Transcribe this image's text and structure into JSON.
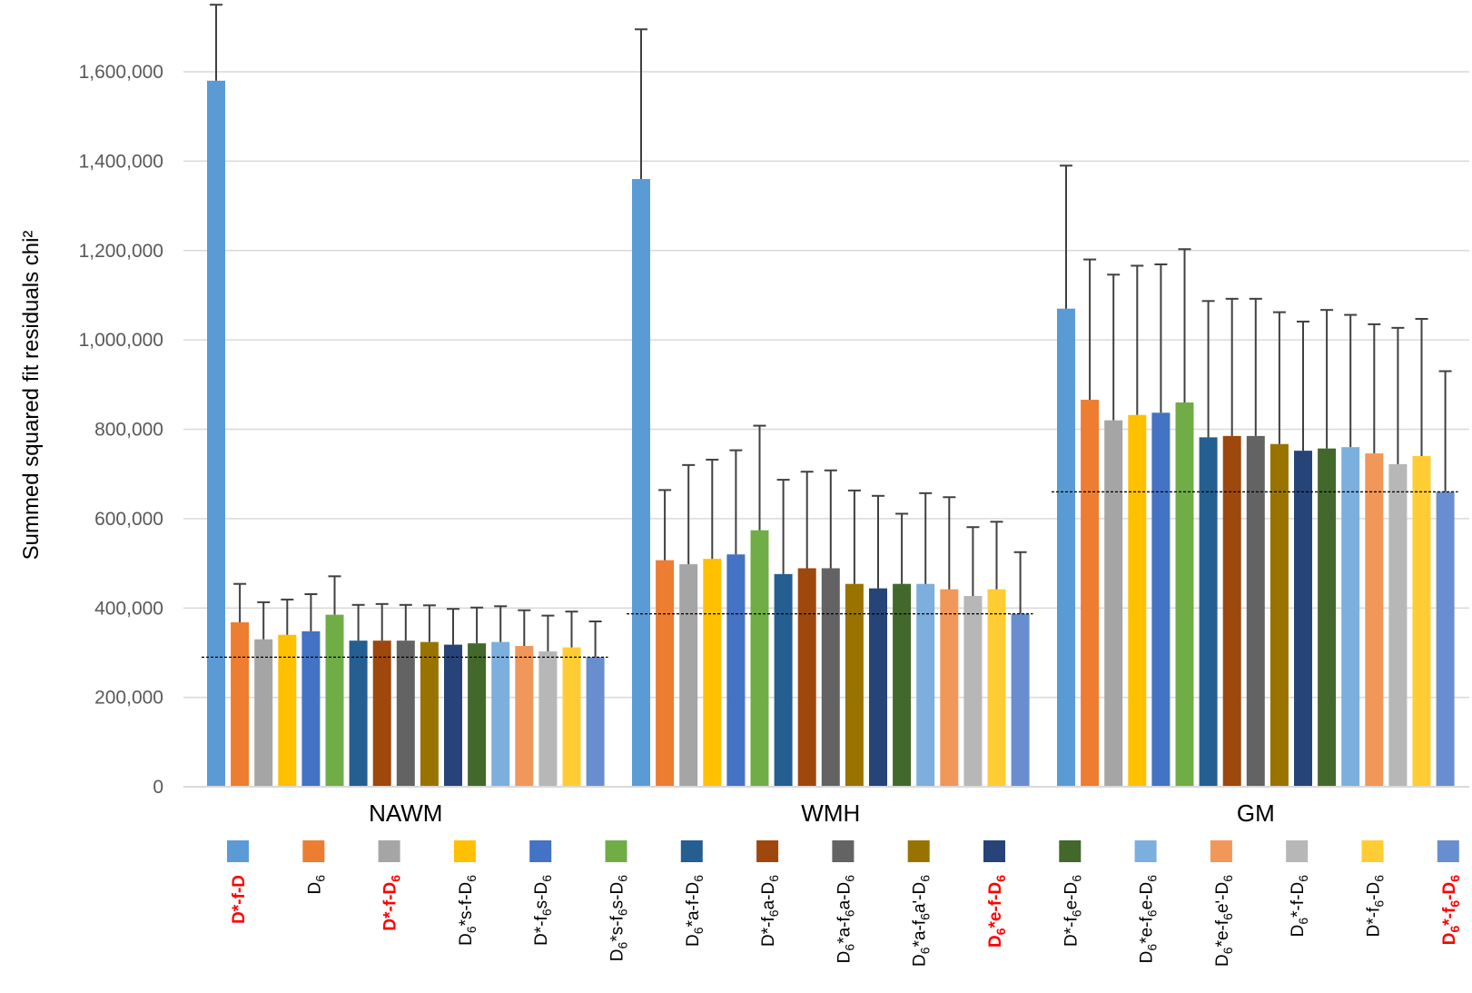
{
  "chart_data": {
    "type": "bar",
    "title": "",
    "xlabel": "",
    "ylabel": "Summed squared fit residuals chi²",
    "ylim": [
      0,
      1750000
    ],
    "yticks": [
      0,
      200000,
      400000,
      600000,
      800000,
      1000000,
      1200000,
      1400000,
      1600000
    ],
    "ytick_labels": [
      "0",
      "200,000",
      "400,000",
      "600,000",
      "800,000",
      "1,000,000",
      "1,200,000",
      "1,400,000",
      "1,600,000"
    ],
    "grid": true,
    "legend_position": "bottom",
    "categories": [
      "NAWM",
      "WMH",
      "GM"
    ],
    "reference_lines": [
      290000,
      387000,
      660000
    ],
    "series": [
      {
        "name": "D*-f-D",
        "label": {
          "segments": [
            {
              "t": "D*-f-D"
            }
          ]
        },
        "highlight": true,
        "color": "#5b9bd5",
        "values": [
          1580000,
          1360000,
          1070000
        ],
        "errors": [
          170000,
          335000,
          320000
        ]
      },
      {
        "name": "D6",
        "label": {
          "segments": [
            {
              "t": "D"
            },
            {
              "t": "6",
              "sub": true
            }
          ]
        },
        "highlight": false,
        "color": "#ed7d31",
        "values": [
          368000,
          507000,
          866000
        ],
        "errors": [
          86000,
          157000,
          314000
        ]
      },
      {
        "name": "D*-f-D6",
        "label": {
          "segments": [
            {
              "t": "D*-f-D"
            },
            {
              "t": "6",
              "sub": true
            }
          ]
        },
        "highlight": true,
        "color": "#a5a5a5",
        "values": [
          330000,
          498000,
          820000
        ],
        "errors": [
          83000,
          222000,
          326000
        ]
      },
      {
        "name": "D6*s-f-D6",
        "label": {
          "segments": [
            {
              "t": "D"
            },
            {
              "t": "6",
              "sub": true
            },
            {
              "t": "*s-f-D"
            },
            {
              "t": "6",
              "sub": true
            }
          ]
        },
        "highlight": false,
        "color": "#ffc000",
        "values": [
          340000,
          510000,
          832000
        ],
        "errors": [
          79000,
          222000,
          334000
        ]
      },
      {
        "name": "D*-f6s-D6",
        "label": {
          "segments": [
            {
              "t": "D*-f"
            },
            {
              "t": "6",
              "sub": true
            },
            {
              "t": "s-D"
            },
            {
              "t": "6",
              "sub": true
            }
          ]
        },
        "highlight": false,
        "color": "#4472c4",
        "values": [
          348000,
          520000,
          837000
        ],
        "errors": [
          83000,
          233000,
          332000
        ]
      },
      {
        "name": "D6*s-f6s-D6",
        "label": {
          "segments": [
            {
              "t": "D"
            },
            {
              "t": "6",
              "sub": true
            },
            {
              "t": "*s-f"
            },
            {
              "t": "6",
              "sub": true
            },
            {
              "t": "s-D"
            },
            {
              "t": "6",
              "sub": true
            }
          ]
        },
        "highlight": false,
        "color": "#70ad47",
        "values": [
          385000,
          574000,
          860000
        ],
        "errors": [
          86000,
          234000,
          343000
        ]
      },
      {
        "name": "D6*a-f-D6",
        "label": {
          "segments": [
            {
              "t": "D"
            },
            {
              "t": "6",
              "sub": true
            },
            {
              "t": "*a-f-D"
            },
            {
              "t": "6",
              "sub": true
            }
          ]
        },
        "highlight": false,
        "color": "#255e91",
        "values": [
          327000,
          476000,
          782000
        ],
        "errors": [
          80000,
          211000,
          305000
        ]
      },
      {
        "name": "D*-f6a-D6",
        "label": {
          "segments": [
            {
              "t": "D*-f"
            },
            {
              "t": "6",
              "sub": true
            },
            {
              "t": "a-D"
            },
            {
              "t": "6",
              "sub": true
            }
          ]
        },
        "highlight": false,
        "color": "#9e480e",
        "values": [
          327000,
          489000,
          785000
        ],
        "errors": [
          82000,
          216000,
          307000
        ]
      },
      {
        "name": "D6*a-f6a-D6",
        "label": {
          "segments": [
            {
              "t": "D"
            },
            {
              "t": "6",
              "sub": true
            },
            {
              "t": "*a-f"
            },
            {
              "t": "6",
              "sub": true
            },
            {
              "t": "a-D"
            },
            {
              "t": "6",
              "sub": true
            }
          ]
        },
        "highlight": false,
        "color": "#636363",
        "values": [
          327000,
          489000,
          785000
        ],
        "errors": [
          80000,
          219000,
          307000
        ]
      },
      {
        "name": "D6*a-f6a'-D6",
        "label": {
          "segments": [
            {
              "t": "D"
            },
            {
              "t": "6",
              "sub": true
            },
            {
              "t": "*a-f"
            },
            {
              "t": "6",
              "sub": true
            },
            {
              "t": "a'-D"
            },
            {
              "t": "6",
              "sub": true
            }
          ]
        },
        "highlight": false,
        "color": "#997300",
        "values": [
          324000,
          454000,
          767000
        ],
        "errors": [
          82000,
          209000,
          295000
        ]
      },
      {
        "name": "D6*e-f-D6",
        "label": {
          "segments": [
            {
              "t": "D"
            },
            {
              "t": "6",
              "sub": true
            },
            {
              "t": "*e-f-D"
            },
            {
              "t": "6",
              "sub": true
            }
          ]
        },
        "highlight": true,
        "color": "#264478",
        "values": [
          318000,
          444000,
          752000
        ],
        "errors": [
          80000,
          207000,
          289000
        ]
      },
      {
        "name": "D*-f6e-D6",
        "label": {
          "segments": [
            {
              "t": "D*-f"
            },
            {
              "t": "6",
              "sub": true
            },
            {
              "t": "e-D"
            },
            {
              "t": "6",
              "sub": true
            }
          ]
        },
        "highlight": false,
        "color": "#43682b",
        "values": [
          321000,
          454000,
          757000
        ],
        "errors": [
          80000,
          157000,
          310000
        ]
      },
      {
        "name": "D6*e-f6e-D6",
        "label": {
          "segments": [
            {
              "t": "D"
            },
            {
              "t": "6",
              "sub": true
            },
            {
              "t": "*e-f"
            },
            {
              "t": "6",
              "sub": true
            },
            {
              "t": "e-D"
            },
            {
              "t": "6",
              "sub": true
            }
          ]
        },
        "highlight": false,
        "color": "#7cafdd",
        "values": [
          324000,
          454000,
          760000
        ],
        "errors": [
          80000,
          203000,
          296000
        ]
      },
      {
        "name": "D6*e-f6e'-D6",
        "label": {
          "segments": [
            {
              "t": "D"
            },
            {
              "t": "6",
              "sub": true
            },
            {
              "t": "*e-f"
            },
            {
              "t": "6",
              "sub": true
            },
            {
              "t": "e'-D"
            },
            {
              "t": "6",
              "sub": true
            }
          ]
        },
        "highlight": false,
        "color": "#f1975a",
        "values": [
          315000,
          442000,
          746000
        ],
        "errors": [
          80000,
          206000,
          289000
        ]
      },
      {
        "name": "D6*-f-D6",
        "label": {
          "segments": [
            {
              "t": "D"
            },
            {
              "t": "6",
              "sub": true
            },
            {
              "t": "*-f-D"
            },
            {
              "t": "6",
              "sub": true
            }
          ]
        },
        "highlight": false,
        "color": "#b7b7b7",
        "values": [
          303000,
          427000,
          722000
        ],
        "errors": [
          80000,
          154000,
          305000
        ]
      },
      {
        "name": "D*-f6-D6",
        "label": {
          "segments": [
            {
              "t": "D*-f"
            },
            {
              "t": "6",
              "sub": true
            },
            {
              "t": "-D"
            },
            {
              "t": "6",
              "sub": true
            }
          ]
        },
        "highlight": false,
        "color": "#ffcd33",
        "values": [
          312000,
          442000,
          740000
        ],
        "errors": [
          80000,
          151000,
          307000
        ]
      },
      {
        "name": "D6*-f6-D6",
        "label": {
          "segments": [
            {
              "t": "D"
            },
            {
              "t": "6",
              "sub": true
            },
            {
              "t": "*-f"
            },
            {
              "t": "6",
              "sub": true
            },
            {
              "t": "-D"
            },
            {
              "t": "6",
              "sub": true
            }
          ]
        },
        "highlight": true,
        "color": "#698ed0",
        "values": [
          290000,
          387000,
          660000
        ],
        "errors": [
          80000,
          138000,
          270000
        ]
      }
    ]
  },
  "colors": {
    "axis_text": "#595959",
    "grid": "#d9d9d9",
    "error_bar": "#404040",
    "highlight_label": "#ff0000"
  }
}
